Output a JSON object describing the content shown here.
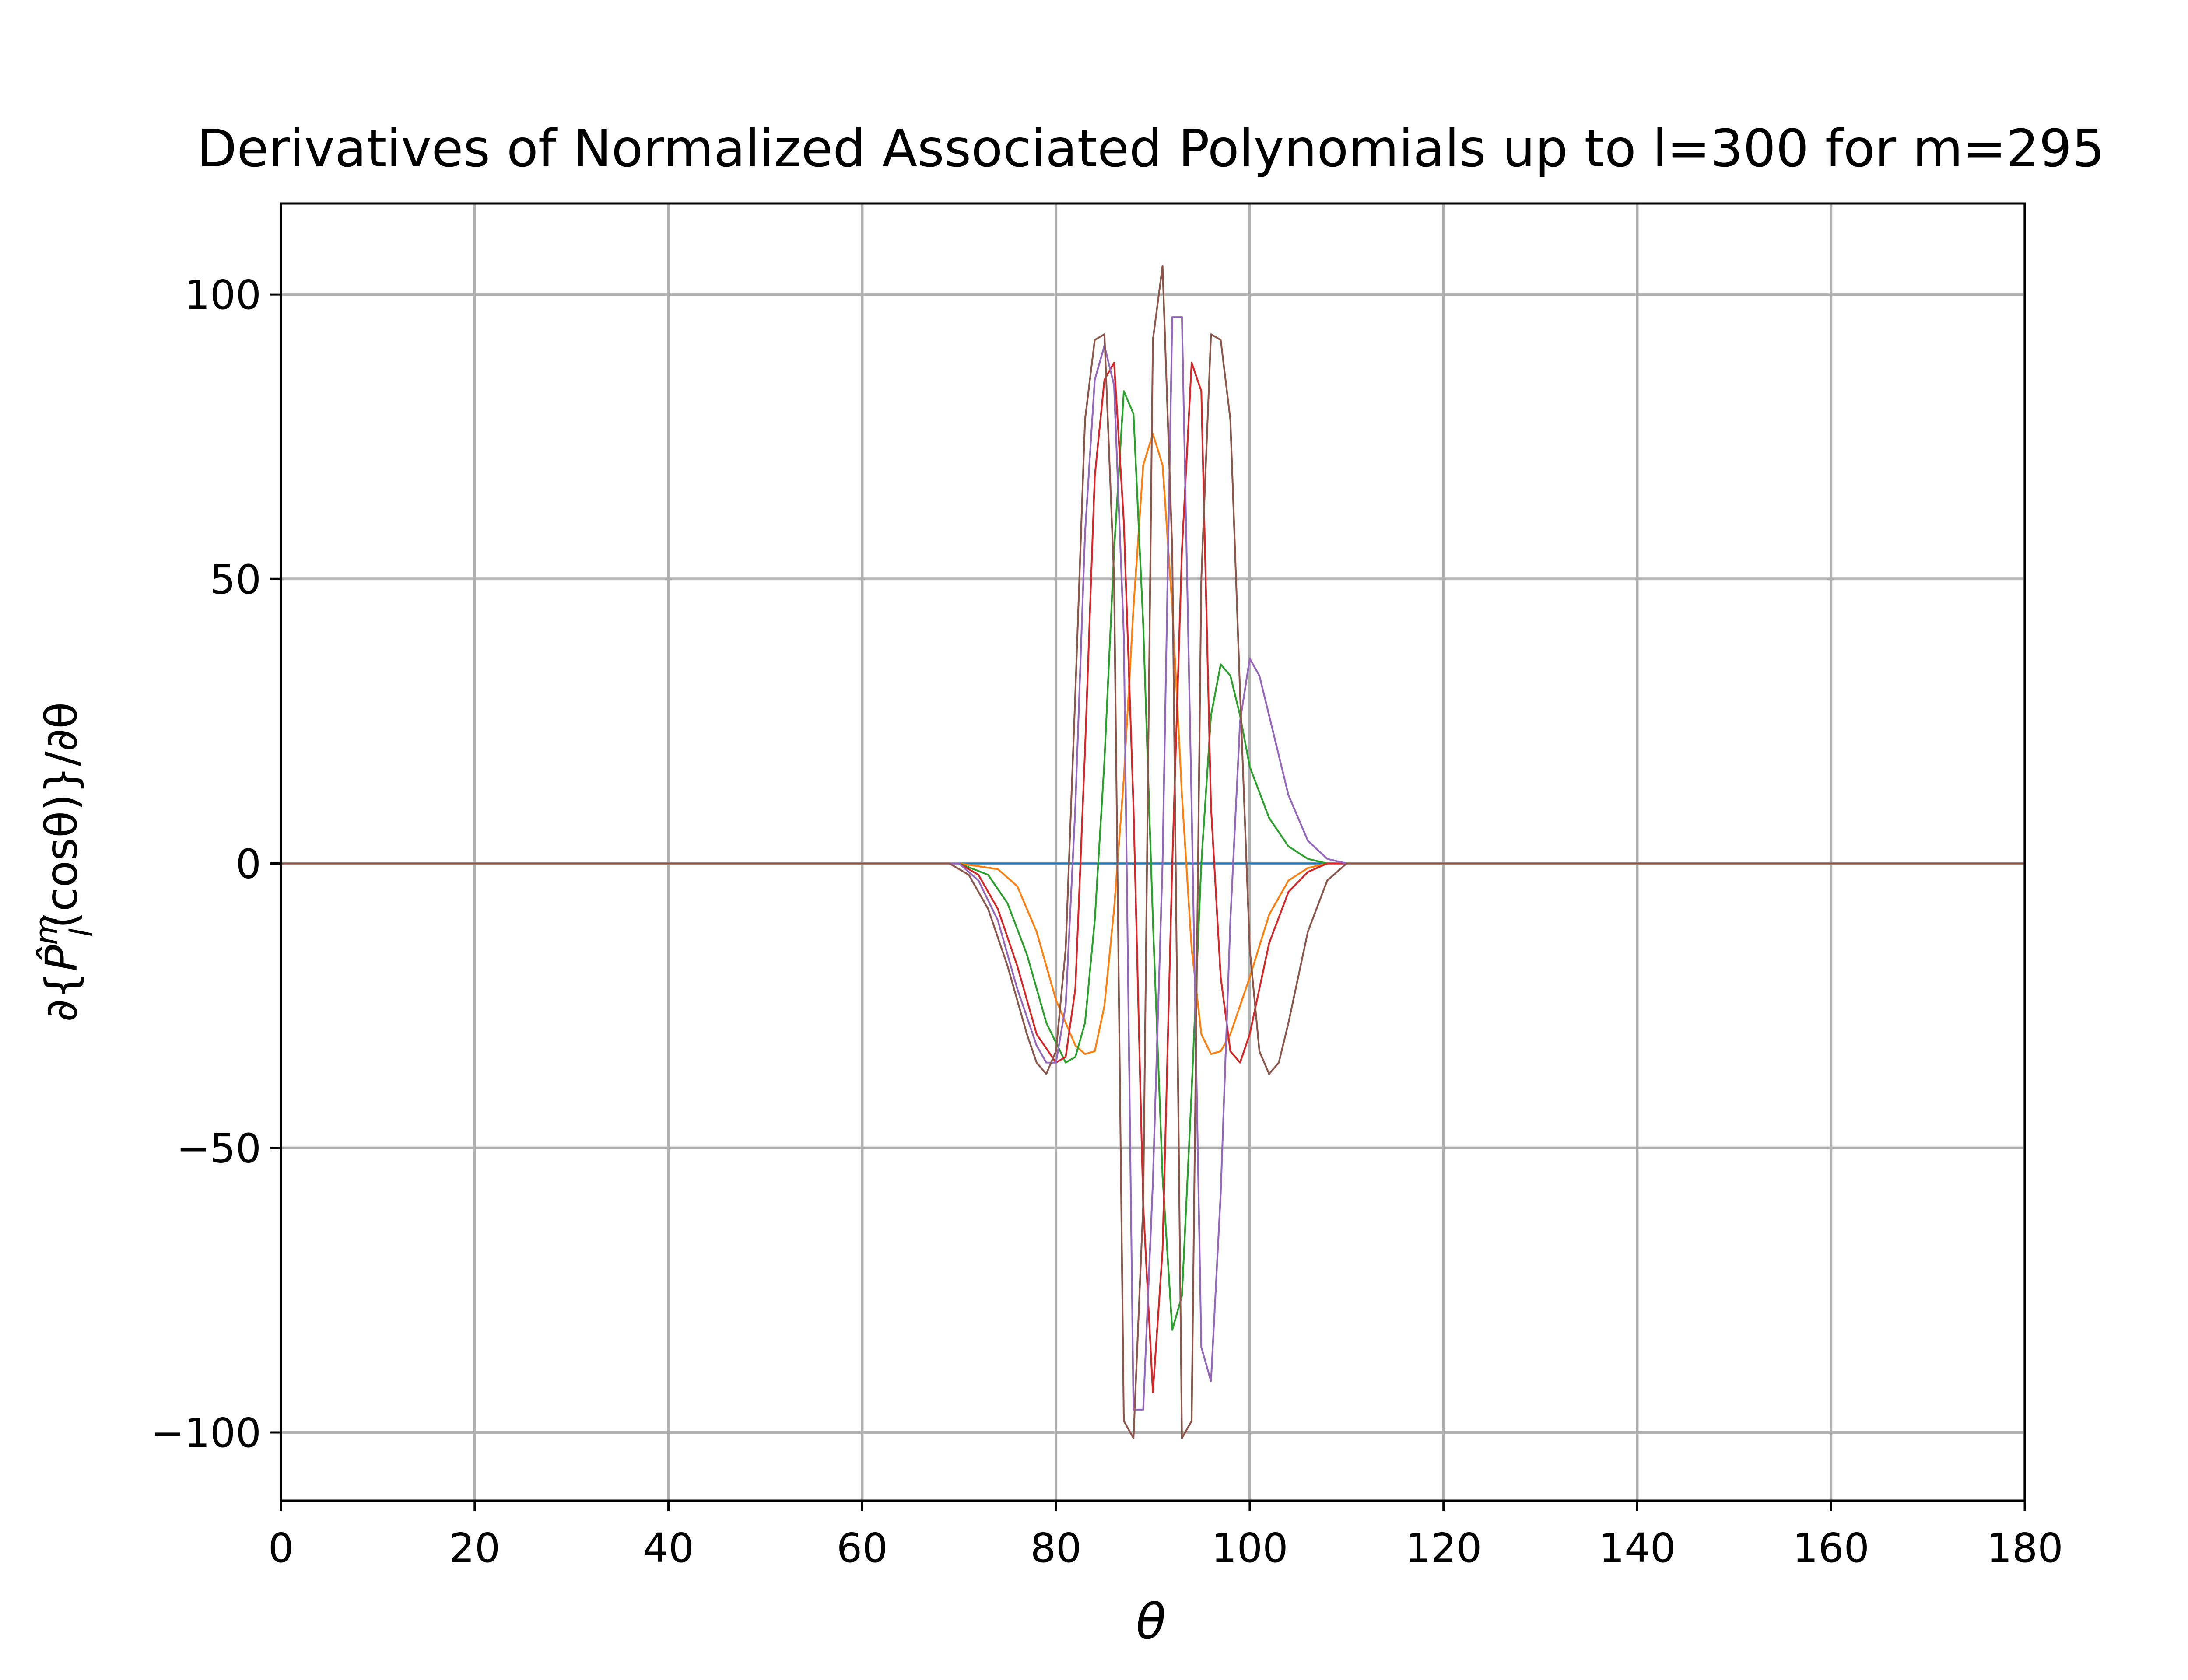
{
  "chart_data": {
    "type": "line",
    "title": "Derivatives of Normalized Associated Polynomials up to l=300 for m=295",
    "xlabel": "θ",
    "ylabel": "∂{P̂lm(cosθ)}/∂θ",
    "ylabel_parts": {
      "pre": "∂{",
      "base": "P̂",
      "sup": "m",
      "sub": "l",
      "post": "(cosθ)}/∂θ"
    },
    "xlim": [
      0,
      180
    ],
    "ylim": [
      -112,
      116
    ],
    "xticks": [
      0,
      20,
      40,
      60,
      80,
      100,
      120,
      140,
      160,
      180
    ],
    "yticks": [
      -100,
      -50,
      0,
      50,
      100
    ],
    "ytick_labels": [
      "−100",
      "−50",
      "0",
      "50",
      "100"
    ],
    "grid": true,
    "legend": "none",
    "series": [
      {
        "color": "#1f77b4",
        "points": [
          [
            0,
            0
          ],
          [
            180,
            0
          ]
        ]
      },
      {
        "color": "#ff7f0e",
        "points": [
          [
            0,
            0
          ],
          [
            70,
            0
          ],
          [
            74,
            -1
          ],
          [
            76,
            -4
          ],
          [
            78,
            -12
          ],
          [
            80,
            -24
          ],
          [
            82,
            -32
          ],
          [
            83,
            -33.5
          ],
          [
            84,
            -33
          ],
          [
            85,
            -25
          ],
          [
            86,
            -8
          ],
          [
            87,
            15
          ],
          [
            88,
            45
          ],
          [
            89,
            70
          ],
          [
            90,
            75.5
          ],
          [
            91,
            70
          ],
          [
            92,
            45
          ],
          [
            93,
            12
          ],
          [
            94,
            -15
          ],
          [
            95,
            -30
          ],
          [
            96,
            -33.5
          ],
          [
            97,
            -33
          ],
          [
            98,
            -30
          ],
          [
            100,
            -20
          ],
          [
            102,
            -9
          ],
          [
            104,
            -3
          ],
          [
            106,
            -0.8
          ],
          [
            108,
            0
          ],
          [
            180,
            0
          ]
        ]
      },
      {
        "color": "#2ca02c",
        "points": [
          [
            0,
            0
          ],
          [
            70,
            0
          ],
          [
            73,
            -2
          ],
          [
            75,
            -7
          ],
          [
            77,
            -16
          ],
          [
            79,
            -28
          ],
          [
            81,
            -35
          ],
          [
            82,
            -34
          ],
          [
            83,
            -28
          ],
          [
            84,
            -10
          ],
          [
            85,
            18
          ],
          [
            86,
            55
          ],
          [
            87,
            83
          ],
          [
            88,
            79
          ],
          [
            89,
            42
          ],
          [
            90,
            -10
          ],
          [
            91,
            -55
          ],
          [
            92,
            -82
          ],
          [
            93,
            -76
          ],
          [
            94,
            -40
          ],
          [
            95,
            0
          ],
          [
            96,
            26
          ],
          [
            97,
            35
          ],
          [
            98,
            33
          ],
          [
            99,
            26
          ],
          [
            100,
            17
          ],
          [
            102,
            8
          ],
          [
            104,
            3
          ],
          [
            106,
            0.8
          ],
          [
            108,
            0
          ],
          [
            180,
            0
          ]
        ]
      },
      {
        "color": "#d62728",
        "points": [
          [
            0,
            0
          ],
          [
            70,
            0
          ],
          [
            72,
            -2
          ],
          [
            74,
            -8
          ],
          [
            76,
            -18
          ],
          [
            78,
            -30
          ],
          [
            80,
            -35
          ],
          [
            81,
            -34
          ],
          [
            82,
            -22
          ],
          [
            83,
            20
          ],
          [
            84,
            68
          ],
          [
            85,
            85
          ],
          [
            86,
            88
          ],
          [
            87,
            60
          ],
          [
            88,
            10
          ],
          [
            89,
            -60
          ],
          [
            90,
            -93
          ],
          [
            91,
            -68
          ],
          [
            92,
            0
          ],
          [
            93,
            55
          ],
          [
            94,
            88
          ],
          [
            95,
            83
          ],
          [
            96,
            10
          ],
          [
            97,
            -20
          ],
          [
            98,
            -33
          ],
          [
            99,
            -35
          ],
          [
            100,
            -30
          ],
          [
            101,
            -22
          ],
          [
            102,
            -14
          ],
          [
            104,
            -5
          ],
          [
            106,
            -1.5
          ],
          [
            108,
            0
          ],
          [
            180,
            0
          ]
        ]
      },
      {
        "color": "#9467bd",
        "points": [
          [
            0,
            0
          ],
          [
            70,
            0
          ],
          [
            72,
            -3
          ],
          [
            74,
            -10
          ],
          [
            76,
            -22
          ],
          [
            78,
            -32
          ],
          [
            79,
            -35
          ],
          [
            80,
            -35
          ],
          [
            81,
            -25
          ],
          [
            82,
            10
          ],
          [
            83,
            58
          ],
          [
            84,
            85
          ],
          [
            85,
            91
          ],
          [
            86,
            84
          ],
          [
            87,
            40
          ],
          [
            88,
            -96
          ],
          [
            89,
            -96
          ],
          [
            90,
            -56
          ],
          [
            91,
            0
          ],
          [
            92,
            96
          ],
          [
            93,
            96
          ],
          [
            94,
            10
          ],
          [
            95,
            -85
          ],
          [
            96,
            -91
          ],
          [
            97,
            -58
          ],
          [
            98,
            -10
          ],
          [
            99,
            25
          ],
          [
            100,
            36
          ],
          [
            101,
            33
          ],
          [
            102,
            26
          ],
          [
            104,
            12
          ],
          [
            106,
            4
          ],
          [
            108,
            0.8
          ],
          [
            110,
            0
          ],
          [
            180,
            0
          ]
        ]
      },
      {
        "color": "#8c564b",
        "points": [
          [
            0,
            0
          ],
          [
            69,
            0
          ],
          [
            71,
            -2
          ],
          [
            73,
            -8
          ],
          [
            75,
            -18
          ],
          [
            77,
            -30
          ],
          [
            78,
            -35
          ],
          [
            79,
            -37
          ],
          [
            80,
            -33
          ],
          [
            81,
            -15
          ],
          [
            82,
            30
          ],
          [
            83,
            78
          ],
          [
            84,
            92
          ],
          [
            85,
            93
          ],
          [
            86,
            50
          ],
          [
            87,
            -98
          ],
          [
            88,
            -101
          ],
          [
            89,
            -60
          ],
          [
            90,
            92
          ],
          [
            91,
            105
          ],
          [
            92,
            55
          ],
          [
            93,
            -101
          ],
          [
            94,
            -98
          ],
          [
            95,
            50
          ],
          [
            96,
            93
          ],
          [
            97,
            92
          ],
          [
            98,
            78
          ],
          [
            99,
            30
          ],
          [
            100,
            -15
          ],
          [
            101,
            -33
          ],
          [
            102,
            -37
          ],
          [
            103,
            -35
          ],
          [
            104,
            -28
          ],
          [
            106,
            -12
          ],
          [
            108,
            -3
          ],
          [
            110,
            0
          ],
          [
            180,
            0
          ]
        ]
      }
    ]
  }
}
